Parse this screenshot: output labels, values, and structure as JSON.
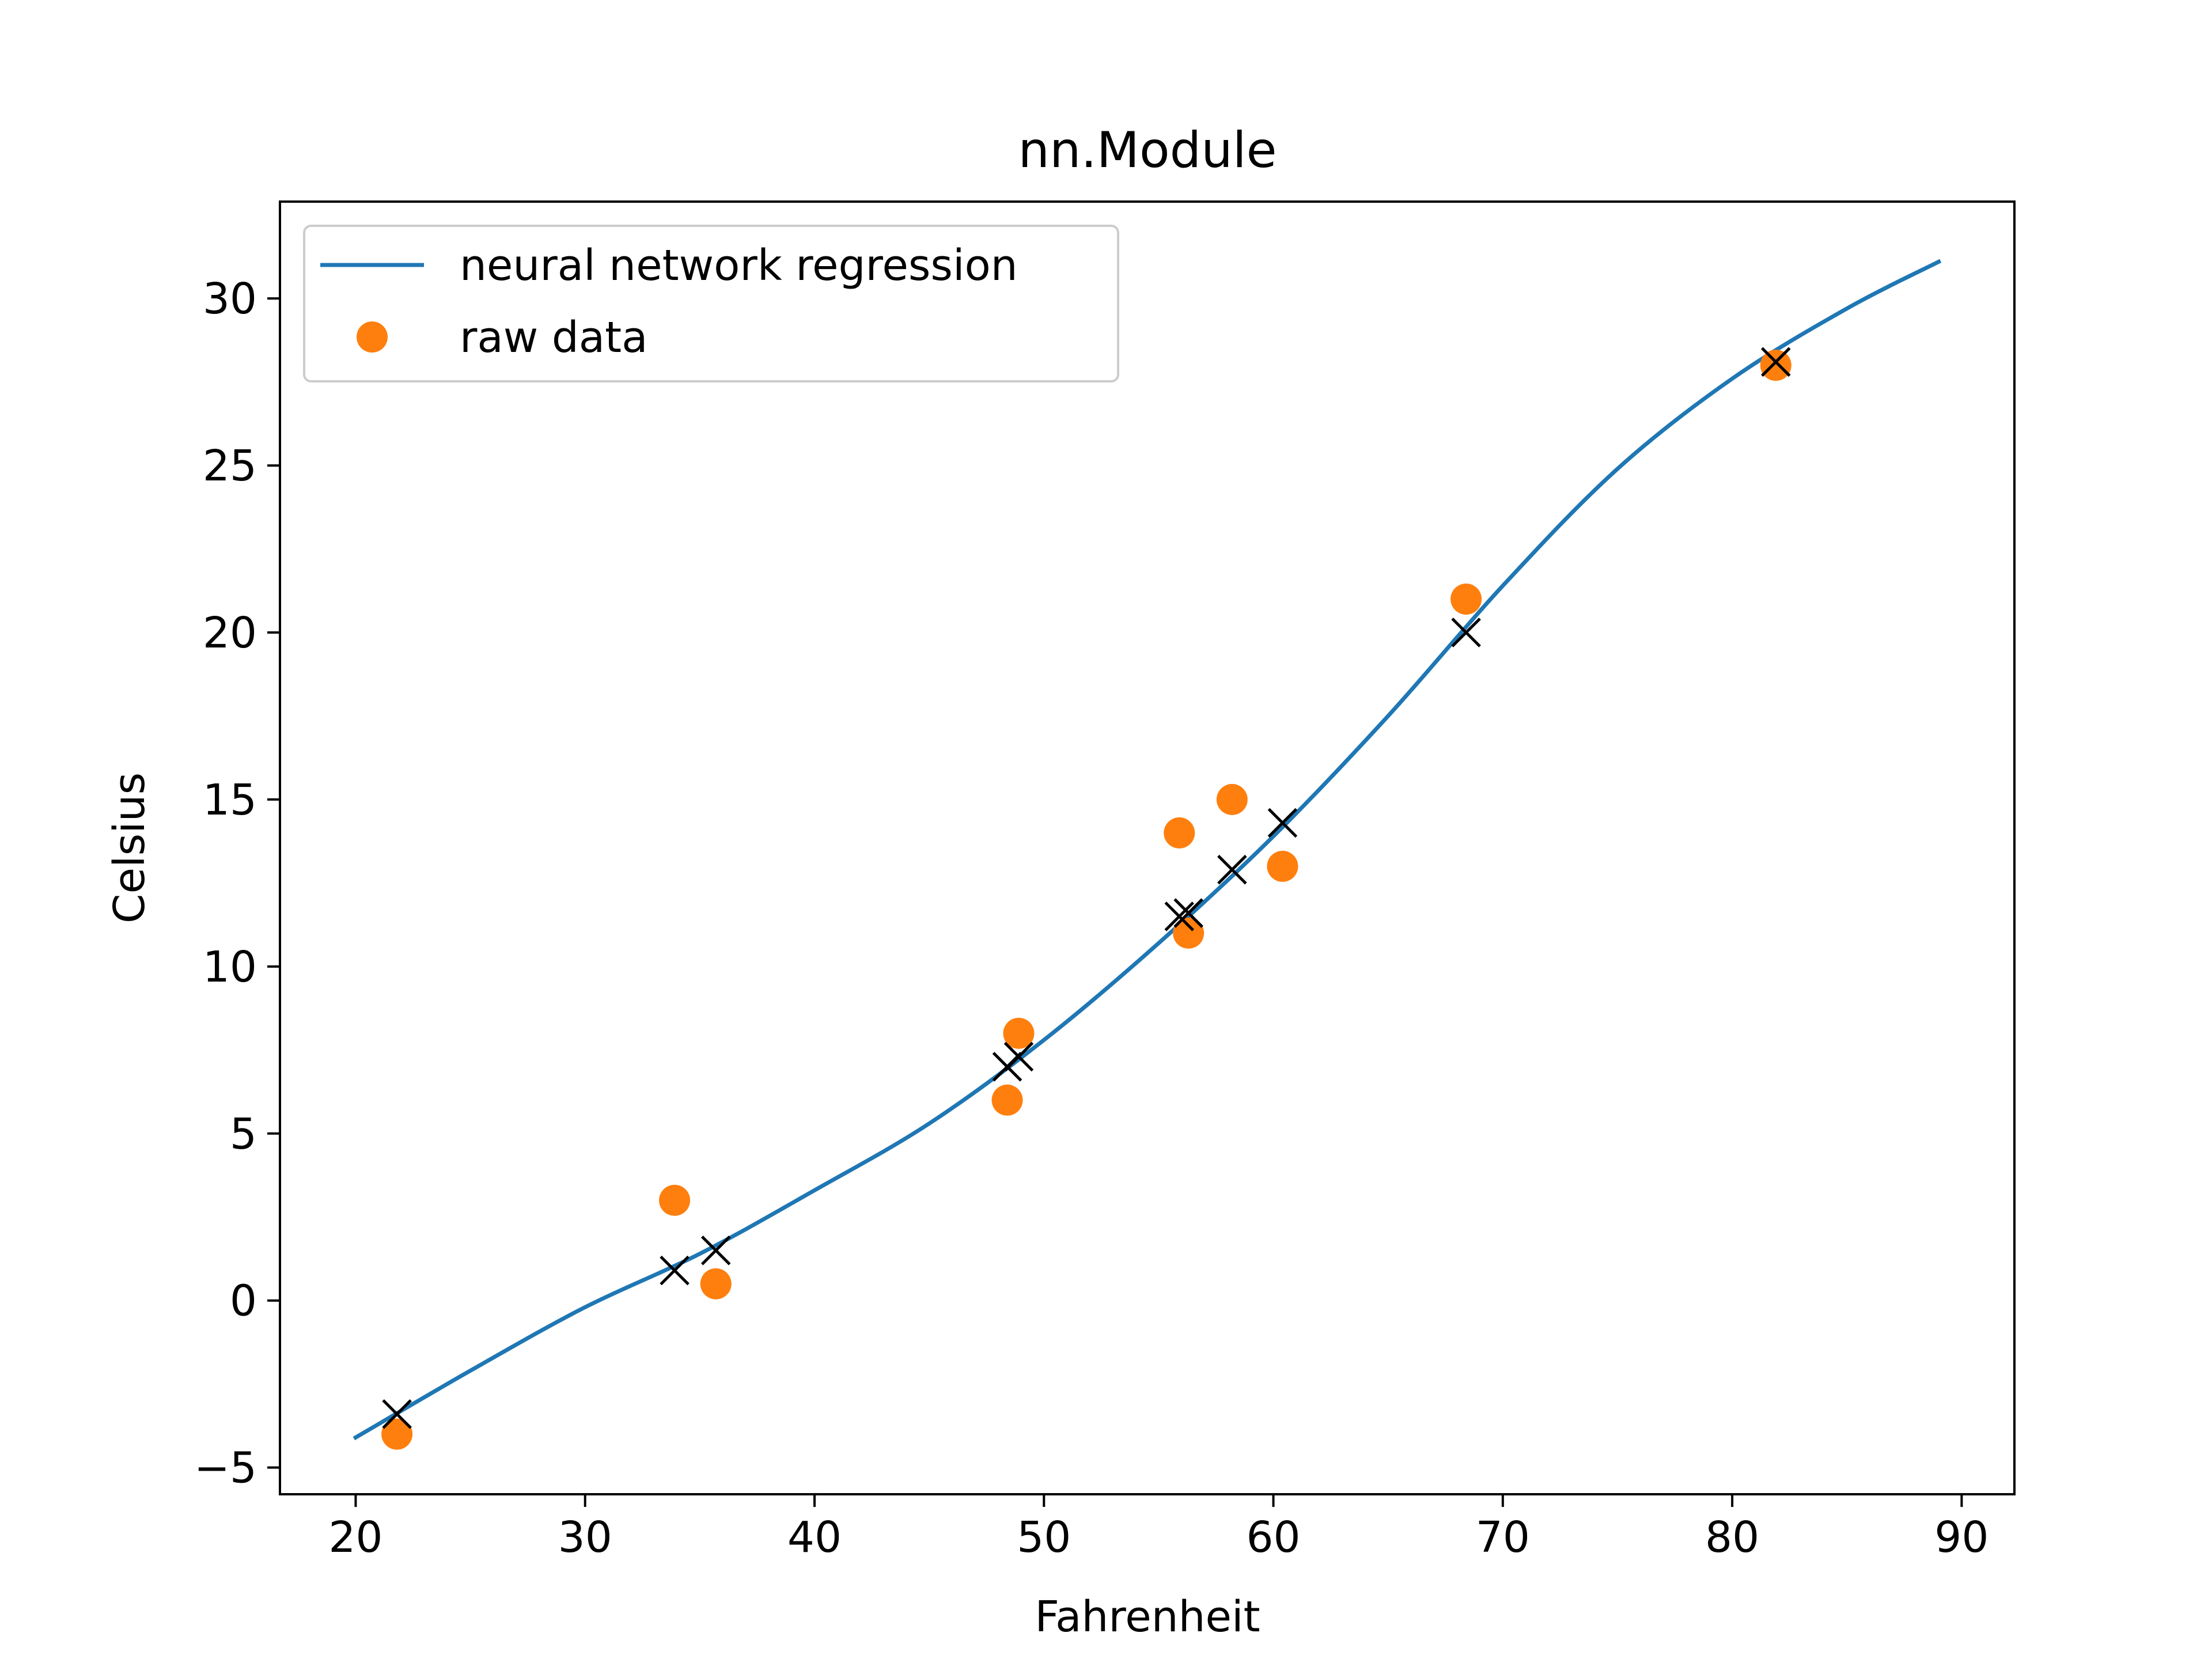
{
  "colors": {
    "background": "#ffffff",
    "axes": "#000000",
    "regression_line": "#1f77b4",
    "raw_points": "#ff7f0e",
    "prediction_markers": "#000000",
    "legend_border": "#cccccc"
  },
  "chart_data": {
    "type": "line",
    "title": "nn.Module",
    "xlabel": "Fahrenheit",
    "ylabel": "Celsius",
    "xlim": [
      16.7,
      92.3
    ],
    "ylim": [
      -5.8,
      32.9
    ],
    "xticks": [
      20,
      30,
      40,
      50,
      60,
      70,
      80,
      90
    ],
    "yticks": [
      -5,
      0,
      5,
      10,
      15,
      20,
      25,
      30
    ],
    "x_tick_labels": [
      "20",
      "30",
      "40",
      "50",
      "60",
      "70",
      "80",
      "90"
    ],
    "y_tick_labels": [
      "−5",
      "0",
      "5",
      "10",
      "15",
      "20",
      "25",
      "30"
    ],
    "grid": false,
    "legend": {
      "position": "upper-left",
      "entries": [
        "neural network regression",
        "raw data"
      ]
    },
    "series": [
      {
        "name": "neural network regression",
        "kind": "line",
        "color": "#1f77b4",
        "x": [
          20,
          25,
          30,
          35,
          40,
          45,
          50,
          55,
          60,
          65,
          70,
          75,
          80,
          85,
          89
        ],
        "y": [
          -4.1,
          -2.1,
          -0.2,
          1.4,
          3.3,
          5.3,
          7.8,
          10.7,
          13.9,
          17.5,
          21.4,
          24.9,
          27.6,
          29.7,
          31.1
        ]
      },
      {
        "name": "raw data",
        "kind": "scatter",
        "marker": "circle",
        "color": "#ff7f0e",
        "x": [
          21.8,
          33.9,
          35.7,
          48.4,
          48.9,
          55.9,
          56.3,
          58.2,
          60.4,
          68.4,
          81.9
        ],
        "y": [
          -4.0,
          3.0,
          0.5,
          6.0,
          8.0,
          14.0,
          11.0,
          15.0,
          13.0,
          21.0,
          28.0
        ]
      },
      {
        "kind": "scatter",
        "marker": "x",
        "color": "#000000",
        "x": [
          21.8,
          33.9,
          35.7,
          48.4,
          48.9,
          55.9,
          56.3,
          58.2,
          60.4,
          68.4,
          81.9
        ],
        "y": [
          -3.4,
          0.9,
          1.5,
          7.0,
          7.3,
          11.5,
          11.6,
          12.9,
          14.3,
          20.0,
          28.1
        ]
      }
    ]
  }
}
